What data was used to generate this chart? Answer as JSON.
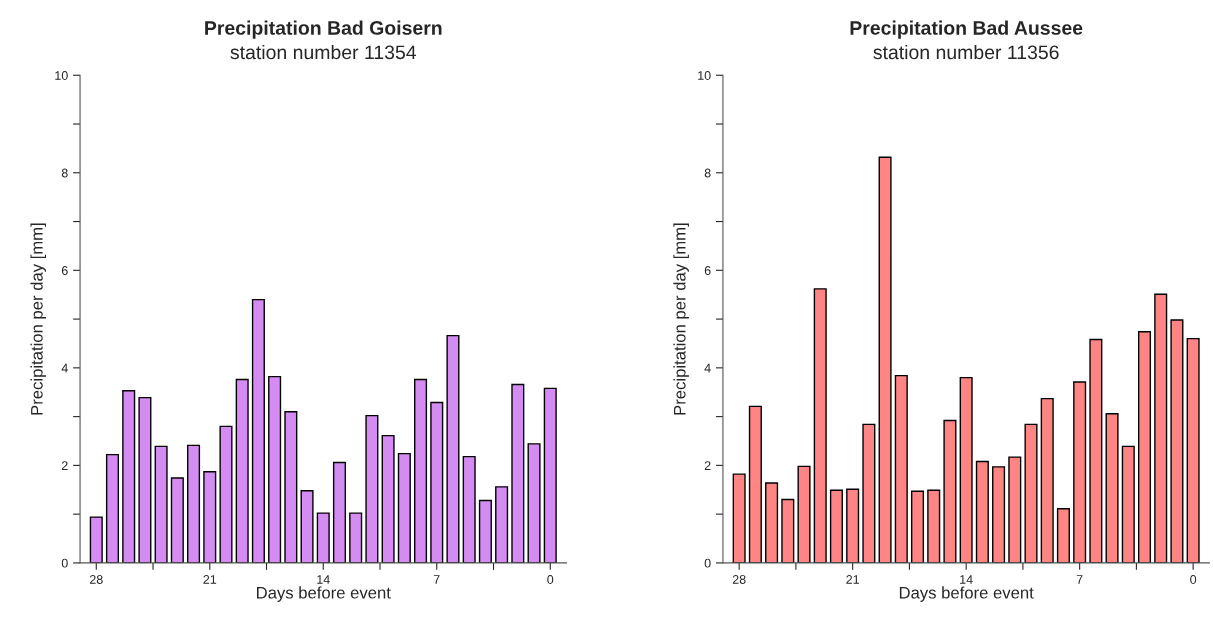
{
  "chart_data": [
    {
      "type": "bar",
      "title": "Precipitation Bad Goisern",
      "subtitle": "station number 11354",
      "xlabel": "Days before event",
      "ylabel": "Precipitation per day [mm]",
      "x": [
        28,
        27,
        26,
        25,
        24,
        23,
        22,
        21,
        20,
        19,
        18,
        17,
        16,
        15,
        14,
        13,
        12,
        11,
        10,
        9,
        8,
        7,
        6,
        5,
        4,
        3,
        2,
        1,
        0
      ],
      "values": [
        0.94,
        2.22,
        3.53,
        3.39,
        2.39,
        1.74,
        2.41,
        1.87,
        2.8,
        3.76,
        5.4,
        3.82,
        3.1,
        1.48,
        1.02,
        2.06,
        1.02,
        3.02,
        2.61,
        2.24,
        3.76,
        3.29,
        4.66,
        2.18,
        1.28,
        1.56,
        3.66,
        2.44,
        3.58
      ],
      "color": "#d58cf2",
      "xlim": [
        29,
        -1
      ],
      "xticks": [
        28,
        {
          "value": 24.5,
          "label": null
        },
        21,
        {
          "value": 17.5,
          "label": null
        },
        14,
        {
          "value": 10.5,
          "label": null
        },
        7,
        {
          "value": 3.5,
          "label": null
        },
        0
      ],
      "ylim": [
        0,
        10
      ],
      "yticks": [
        0,
        {
          "value": 1,
          "label": null
        },
        2,
        {
          "value": 3,
          "label": null
        },
        4,
        {
          "value": 5,
          "label": null
        },
        6,
        {
          "value": 7,
          "label": null
        },
        8,
        {
          "value": 9,
          "label": null
        },
        10
      ],
      "grid": false,
      "legend": false
    },
    {
      "type": "bar",
      "title": "Precipitation Bad Aussee",
      "subtitle": "station number 11356",
      "xlabel": "Days before event",
      "ylabel": "Precipitation per day [mm]",
      "x": [
        28,
        27,
        26,
        25,
        24,
        23,
        22,
        21,
        20,
        19,
        18,
        17,
        16,
        15,
        14,
        13,
        12,
        11,
        10,
        9,
        8,
        7,
        6,
        5,
        4,
        3,
        2,
        1,
        0
      ],
      "values": [
        1.82,
        3.21,
        1.64,
        1.3,
        1.98,
        5.62,
        1.49,
        1.51,
        2.84,
        8.32,
        3.84,
        1.47,
        1.49,
        2.92,
        3.8,
        2.08,
        1.97,
        2.17,
        2.84,
        3.37,
        1.11,
        3.71,
        4.58,
        3.06,
        2.39,
        4.74,
        5.51,
        4.98,
        4.6
      ],
      "color": "#ff8585",
      "xlim": [
        29,
        -1
      ],
      "xticks": [
        28,
        {
          "value": 24.5,
          "label": null
        },
        21,
        {
          "value": 17.5,
          "label": null
        },
        14,
        {
          "value": 10.5,
          "label": null
        },
        7,
        {
          "value": 3.5,
          "label": null
        },
        0
      ],
      "ylim": [
        0,
        10
      ],
      "yticks": [
        0,
        {
          "value": 1,
          "label": null
        },
        2,
        {
          "value": 3,
          "label": null
        },
        4,
        {
          "value": 5,
          "label": null
        },
        6,
        {
          "value": 7,
          "label": null
        },
        8,
        {
          "value": 9,
          "label": null
        },
        10
      ],
      "grid": false,
      "legend": false
    }
  ]
}
